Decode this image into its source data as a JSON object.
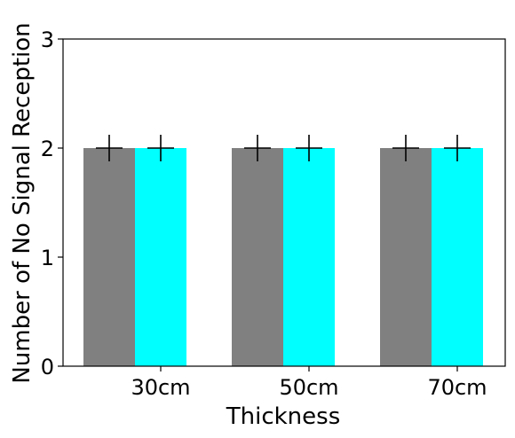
{
  "chart_data": {
    "type": "bar",
    "title": "",
    "xlabel": "Thickness",
    "ylabel": "Number of No Signal Reception",
    "categories": [
      "30cm",
      "50cm",
      "70cm"
    ],
    "series": [
      {
        "values": [
          2,
          2,
          2
        ],
        "color": "#808080"
      },
      {
        "values": [
          2,
          2,
          2
        ],
        "color": "#00ffff"
      }
    ],
    "ylim": [
      0,
      3
    ],
    "yticks": [
      "0",
      "1",
      "2",
      "3"
    ],
    "markers": "plus",
    "grid": false,
    "legend": "none"
  }
}
